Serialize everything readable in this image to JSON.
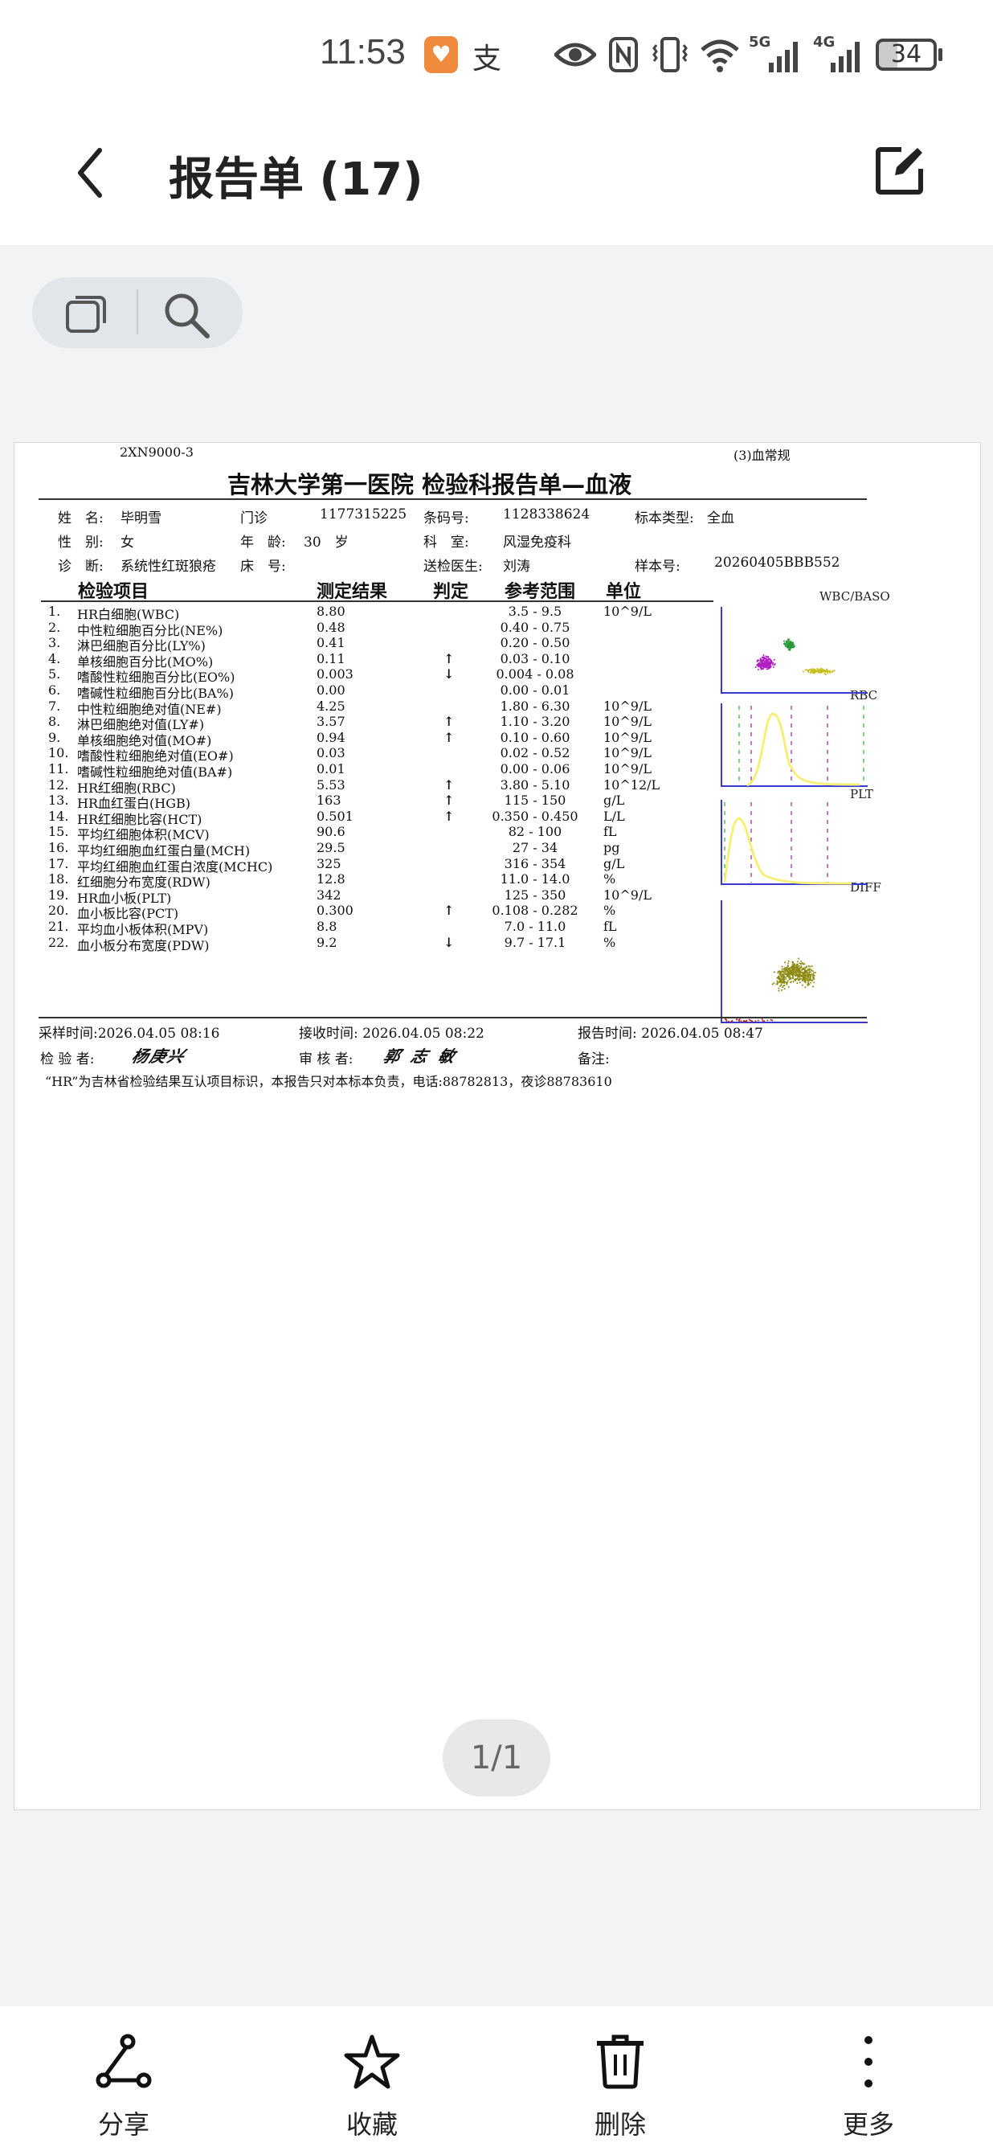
{
  "status_bar": {
    "time": "11:53",
    "battery": "34",
    "network_1": "5G",
    "network_2": "4G",
    "icons": [
      "health-app-icon",
      "alipay-icon",
      "eye-icon",
      "nfc-icon",
      "vibrate-icon",
      "wifi-icon",
      "signal-5g-icon",
      "signal-4g-icon",
      "battery-icon"
    ]
  },
  "header": {
    "title": "报告单 (17)",
    "back_icon": "chevron-left-icon",
    "edit_icon": "edit-icon"
  },
  "toolbar": {
    "icons": [
      "copy-icon",
      "search-icon"
    ]
  },
  "report": {
    "instrument": "2XN9000-3",
    "category": "(3)血常规",
    "title": "吉林大学第一医院 检验科报告单—血液",
    "info": {
      "name_label": "姓　名:",
      "name": "毕明雪",
      "visit_label": "门诊",
      "visit_no": "1177315225",
      "barcode_label": "条码号:",
      "barcode": "1128338624",
      "specimen_label": "标本类型:",
      "specimen": "全血",
      "sex_label": "性　别:",
      "sex": "女",
      "age_label": "年　龄:",
      "age": "30　岁",
      "dept_label": "科　室:",
      "dept": "风湿免疫科",
      "diag_label": "诊　断:",
      "diagnosis": "系统性红斑狼疮",
      "bed_label": "床　号:",
      "doctor_label": "送检医生:",
      "doctor": "刘涛",
      "sample_label": "样本号:",
      "sample_no": "20260405BBB552"
    },
    "columns": [
      "检验项目",
      "测定结果",
      "判定",
      "参考范围",
      "单位"
    ],
    "rows": [
      {
        "no": "1.",
        "item": "HR白细胞(WBC)",
        "result": "8.80",
        "flag": "",
        "range": "3.5 - 9.5",
        "unit": "10^9/L"
      },
      {
        "no": "2.",
        "item": "中性粒细胞百分比(NE%)",
        "result": "0.48",
        "flag": "",
        "range": "0.40 - 0.75",
        "unit": ""
      },
      {
        "no": "3.",
        "item": "淋巴细胞百分比(LY%)",
        "result": "0.41",
        "flag": "",
        "range": "0.20 - 0.50",
        "unit": ""
      },
      {
        "no": "4.",
        "item": "单核细胞百分比(MO%)",
        "result": "0.11",
        "flag": "↑",
        "range": "0.03 - 0.10",
        "unit": ""
      },
      {
        "no": "5.",
        "item": "嗜酸性粒细胞百分比(EO%)",
        "result": "0.003",
        "flag": "↓",
        "range": "0.004 - 0.08",
        "unit": ""
      },
      {
        "no": "6.",
        "item": "嗜碱性粒细胞百分比(BA%)",
        "result": "0.00",
        "flag": "",
        "range": "0.00 - 0.01",
        "unit": ""
      },
      {
        "no": "7.",
        "item": "中性粒细胞绝对值(NE#)",
        "result": "4.25",
        "flag": "",
        "range": "1.80 - 6.30",
        "unit": "10^9/L"
      },
      {
        "no": "8.",
        "item": "淋巴细胞绝对值(LY#)",
        "result": "3.57",
        "flag": "↑",
        "range": "1.10 - 3.20",
        "unit": "10^9/L"
      },
      {
        "no": "9.",
        "item": "单核细胞绝对值(MO#)",
        "result": "0.94",
        "flag": "↑",
        "range": "0.10 - 0.60",
        "unit": "10^9/L"
      },
      {
        "no": "10.",
        "item": "嗜酸性粒细胞绝对值(EO#)",
        "result": "0.03",
        "flag": "",
        "range": "0.02 - 0.52",
        "unit": "10^9/L"
      },
      {
        "no": "11.",
        "item": "嗜碱性粒细胞绝对值(BA#)",
        "result": "0.01",
        "flag": "",
        "range": "0.00 - 0.06",
        "unit": "10^9/L"
      },
      {
        "no": "12.",
        "item": "HR红细胞(RBC)",
        "result": "5.53",
        "flag": "↑",
        "range": "3.80 - 5.10",
        "unit": "10^12/L"
      },
      {
        "no": "13.",
        "item": "HR血红蛋白(HGB)",
        "result": "163",
        "flag": "↑",
        "range": "115 - 150",
        "unit": "g/L"
      },
      {
        "no": "14.",
        "item": "HR红细胞比容(HCT)",
        "result": "0.501",
        "flag": "↑",
        "range": "0.350 - 0.450",
        "unit": "L/L"
      },
      {
        "no": "15.",
        "item": "平均红细胞体积(MCV)",
        "result": "90.6",
        "flag": "",
        "range": "82 - 100",
        "unit": "fL"
      },
      {
        "no": "16.",
        "item": "平均红细胞血红蛋白量(MCH)",
        "result": "29.5",
        "flag": "",
        "range": "27 - 34",
        "unit": "pg"
      },
      {
        "no": "17.",
        "item": "平均红细胞血红蛋白浓度(MCHC)",
        "result": "325",
        "flag": "",
        "range": "316 - 354",
        "unit": "g/L"
      },
      {
        "no": "18.",
        "item": "红细胞分布宽度(RDW)",
        "result": "12.8",
        "flag": "",
        "range": "11.0 - 14.0",
        "unit": "%"
      },
      {
        "no": "19.",
        "item": "HR血小板(PLT)",
        "result": "342",
        "flag": "",
        "range": "125 - 350",
        "unit": "10^9/L"
      },
      {
        "no": "20.",
        "item": "血小板比容(PCT)",
        "result": "0.300",
        "flag": "↑",
        "range": "0.108 - 0.282",
        "unit": "%"
      },
      {
        "no": "21.",
        "item": "平均血小板体积(MPV)",
        "result": "8.8",
        "flag": "",
        "range": "7.0 - 11.0",
        "unit": "fL"
      },
      {
        "no": "22.",
        "item": "血小板分布宽度(PDW)",
        "result": "9.2",
        "flag": "↓",
        "range": "9.7 - 17.1",
        "unit": "%"
      }
    ],
    "plots": [
      "WBC/BASO",
      "RBC",
      "PLT",
      "DIFF"
    ],
    "footer": {
      "sample_time": "采样时间:2026.04.05 08:16",
      "receive_time": "接收时间: 2026.04.05 08:22",
      "report_time": "报告时间: 2026.04.05 08:47",
      "tester_label": "检 验 者:",
      "tester_signature": "杨庚兴",
      "reviewer_label": "审 核 者:",
      "reviewer_signature": "郭志敏",
      "remark_label": "备注:",
      "note": "“HR”为吉林省检验结果互认项目标识，本报告只对本标本负责，电话:88782813，夜诊88783610"
    }
  },
  "page_indicator": "1/1",
  "bottom_nav": [
    {
      "label": "分享",
      "icon": "share-icon"
    },
    {
      "label": "收藏",
      "icon": "star-icon"
    },
    {
      "label": "删除",
      "icon": "trash-icon"
    },
    {
      "label": "更多",
      "icon": "more-vertical-icon"
    }
  ],
  "colors": {
    "background": "#f1f3f5",
    "pill": "#e2e5e9",
    "health_icon": "#f08a3c",
    "plot_axis": "#3a3ad0",
    "plot_curve": "#f4f07a"
  }
}
